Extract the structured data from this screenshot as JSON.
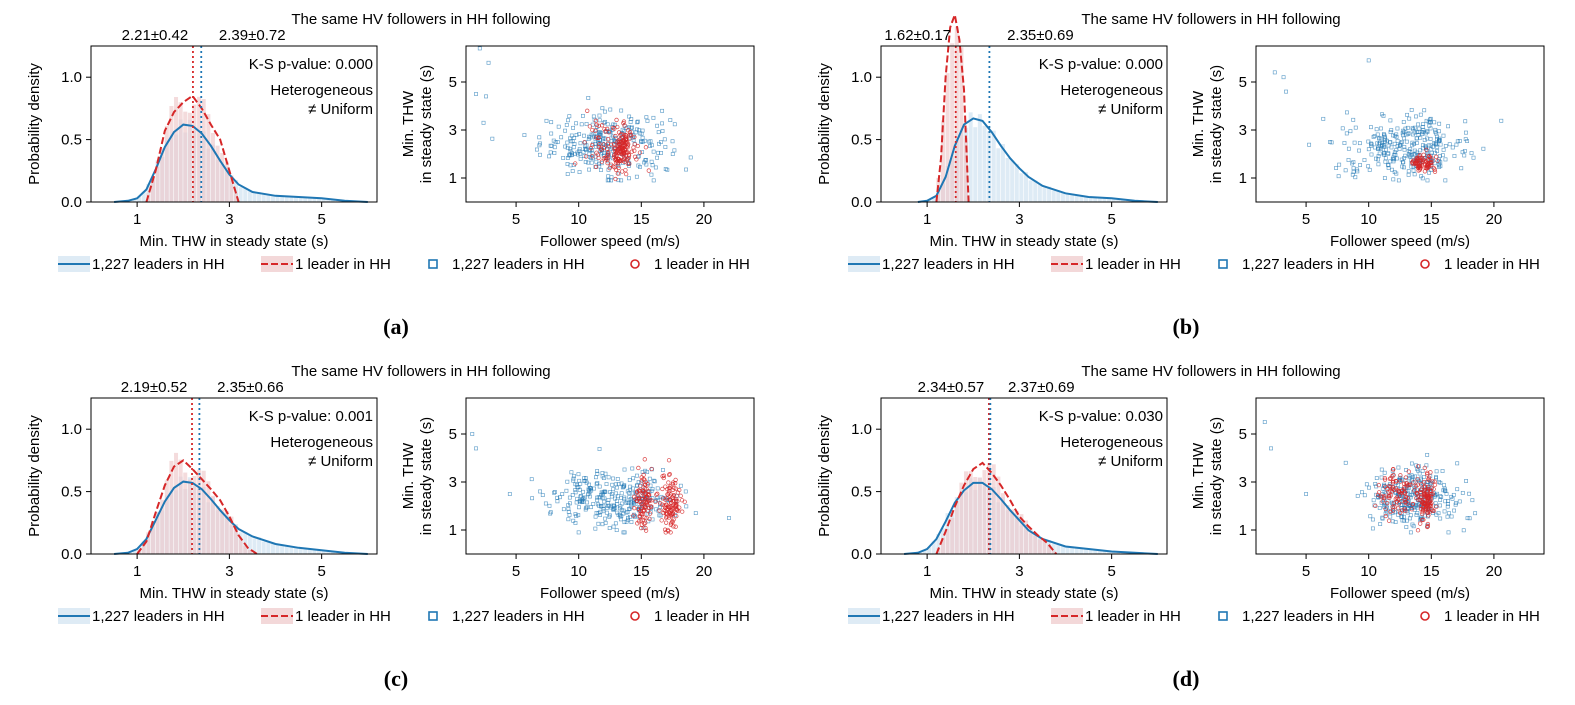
{
  "colors": {
    "blue": "#1f77b4",
    "red": "#d62728",
    "blue_fill": "#d6e6f3",
    "red_fill": "#eec7c9"
  },
  "chart_data": [
    {
      "label": "(a)",
      "title": "The same HV followers in HH following",
      "hist": {
        "type": "area",
        "xlabel": "Min. THW in steady state (s)",
        "ylabel": "Probability density",
        "xlim": [
          0,
          6.2
        ],
        "ylim": [
          0,
          1.25
        ],
        "xticks": [
          1,
          3,
          5
        ],
        "yticks": [
          0.0,
          0.5,
          1.0
        ],
        "xtick_labels": [
          "1",
          "3",
          "5"
        ],
        "ytick_labels": [
          "0.0",
          "0.5",
          "1.0"
        ],
        "mean_red": 2.21,
        "mean_blue": 2.39,
        "stat_red": "2.21±0.42",
        "stat_blue": "2.39±0.72",
        "ks_text": "K-S p-value: 0.000",
        "verdict_line1": "Heterogeneous",
        "verdict_line2": "≠ Uniform",
        "series": [
          {
            "name": "1,227 leaders in HH",
            "style": "solid",
            "x": [
              0.5,
              0.8,
              1.0,
              1.2,
              1.4,
              1.6,
              1.8,
              2.0,
              2.2,
              2.4,
              2.6,
              2.8,
              3.0,
              3.2,
              3.5,
              4.0,
              4.5,
              5.0,
              5.5,
              6.0
            ],
            "y": [
              0.0,
              0.01,
              0.03,
              0.1,
              0.26,
              0.44,
              0.56,
              0.62,
              0.61,
              0.55,
              0.45,
              0.33,
              0.22,
              0.14,
              0.08,
              0.05,
              0.04,
              0.03,
              0.01,
              0.0
            ]
          },
          {
            "name": "1 leader in HH",
            "style": "dashed",
            "x": [
              1.2,
              1.4,
              1.6,
              1.8,
              2.0,
              2.2,
              2.4,
              2.6,
              2.8,
              3.0,
              3.2
            ],
            "y": [
              0.0,
              0.25,
              0.57,
              0.72,
              0.8,
              0.85,
              0.75,
              0.62,
              0.5,
              0.25,
              0.0
            ]
          }
        ]
      },
      "scatter": {
        "type": "scatter",
        "xlabel": "Follower speed (m/s)",
        "ylabel_line1": "Min. THW",
        "ylabel_line2": "in steady state (s)",
        "xlim": [
          1,
          24
        ],
        "ylim": [
          0,
          6.5
        ],
        "xticks": [
          5,
          10,
          15,
          20
        ],
        "yticks": [
          1,
          3,
          5
        ],
        "xtick_labels": [
          "5",
          "10",
          "15",
          "20"
        ],
        "ytick_labels": [
          "1",
          "3",
          "5"
        ],
        "series": [
          {
            "name": "1,227 leaders in HH",
            "marker": "square",
            "cloud": [
              12.2,
              2.4,
              2.6,
              0.65,
              280
            ]
          },
          {
            "name": "1 leader in HH",
            "marker": "circle",
            "cloud": [
              12.6,
              2.3,
              1.0,
              0.55,
              80
            ],
            "band": [
              13.5,
              2.2,
              0.35,
              0.45,
              110
            ]
          }
        ],
        "outliers": [
          [
            2.1,
            6.4
          ],
          [
            2.8,
            5.8
          ],
          [
            1.8,
            4.5
          ],
          [
            2.6,
            4.4
          ],
          [
            2.4,
            3.3
          ]
        ]
      }
    },
    {
      "label": "(b)",
      "title": "The same HV followers in HH following",
      "hist": {
        "type": "area",
        "xlabel": "Min. THW in steady state (s)",
        "ylabel": "Probability density",
        "xlim": [
          0,
          6.2
        ],
        "ylim": [
          0,
          1.25
        ],
        "xticks": [
          1,
          3,
          5
        ],
        "yticks": [
          0.0,
          0.5,
          1.0
        ],
        "xtick_labels": [
          "1",
          "3",
          "5"
        ],
        "ytick_labels": [
          "0.0",
          "0.5",
          "1.0"
        ],
        "mean_red": 1.62,
        "mean_blue": 2.35,
        "stat_red": "1.62±0.17",
        "stat_blue": "2.35±0.69",
        "ks_text": "K-S p-value: 0.000",
        "verdict_line1": "Heterogeneous",
        "verdict_line2": "≠ Uniform",
        "series": [
          {
            "name": "1,227 leaders in HH",
            "style": "solid",
            "x": [
              0.8,
              1.0,
              1.2,
              1.4,
              1.6,
              1.8,
              2.0,
              2.2,
              2.4,
              2.6,
              2.8,
              3.0,
              3.2,
              3.5,
              4.0,
              4.5,
              5.0,
              5.5,
              6.0
            ],
            "y": [
              0.0,
              0.01,
              0.05,
              0.2,
              0.45,
              0.62,
              0.67,
              0.65,
              0.56,
              0.45,
              0.35,
              0.27,
              0.2,
              0.13,
              0.07,
              0.04,
              0.03,
              0.01,
              0.0
            ]
          },
          {
            "name": "1 leader in HH",
            "style": "dashed",
            "x": [
              1.2,
              1.3,
              1.4,
              1.5,
              1.6,
              1.7,
              1.8,
              1.9
            ],
            "y": [
              0.0,
              0.35,
              1.0,
              1.4,
              1.5,
              1.3,
              0.9,
              0.0
            ]
          }
        ]
      },
      "scatter": {
        "type": "scatter",
        "xlabel": "Follower speed (m/s)",
        "ylabel_line1": "Min. THW",
        "ylabel_line2": "in steady state (s)",
        "xlim": [
          1,
          24
        ],
        "ylim": [
          0,
          6.5
        ],
        "xticks": [
          5,
          10,
          15,
          20
        ],
        "yticks": [
          1,
          3,
          5
        ],
        "xtick_labels": [
          "5",
          "10",
          "15",
          "20"
        ],
        "ytick_labels": [
          "1",
          "3",
          "5"
        ],
        "series": [
          {
            "name": "1,227 leaders in HH",
            "marker": "square",
            "cloud": [
              13.0,
              2.3,
              2.5,
              0.65,
              300
            ]
          },
          {
            "name": "1 leader in HH",
            "marker": "circle",
            "cloud": [
              14.3,
              1.62,
              0.5,
              0.17,
              80
            ]
          }
        ],
        "outliers": [
          [
            2.5,
            5.4
          ],
          [
            3.2,
            5.2
          ],
          [
            3.4,
            4.6
          ],
          [
            10.0,
            5.9
          ]
        ]
      }
    },
    {
      "label": "(c)",
      "title": "The same HV followers in HH following",
      "hist": {
        "type": "area",
        "xlabel": "Min. THW in steady state (s)",
        "ylabel": "Probability density",
        "xlim": [
          0,
          6.2
        ],
        "ylim": [
          0,
          1.25
        ],
        "xticks": [
          1,
          3,
          5
        ],
        "yticks": [
          0.0,
          0.5,
          1.0
        ],
        "xtick_labels": [
          "1",
          "3",
          "5"
        ],
        "ytick_labels": [
          "0.0",
          "0.5",
          "1.0"
        ],
        "mean_red": 2.19,
        "mean_blue": 2.35,
        "stat_red": "2.19±0.52",
        "stat_blue": "2.35±0.66",
        "ks_text": "K-S p-value: 0.001",
        "verdict_line1": "Heterogeneous",
        "verdict_line2": "≠ Uniform",
        "series": [
          {
            "name": "1,227 leaders in HH",
            "style": "solid",
            "x": [
              0.5,
              0.8,
              1.0,
              1.2,
              1.4,
              1.6,
              1.8,
              2.0,
              2.2,
              2.4,
              2.6,
              2.8,
              3.0,
              3.2,
              3.5,
              4.0,
              4.5,
              5.0,
              5.5,
              6.0
            ],
            "y": [
              0.0,
              0.01,
              0.04,
              0.12,
              0.27,
              0.42,
              0.53,
              0.58,
              0.57,
              0.52,
              0.44,
              0.35,
              0.27,
              0.2,
              0.14,
              0.08,
              0.05,
              0.03,
              0.01,
              0.0
            ]
          },
          {
            "name": "1 leader in HH",
            "style": "dashed",
            "x": [
              1.0,
              1.2,
              1.4,
              1.6,
              1.8,
              2.0,
              2.2,
              2.4,
              2.6,
              2.8,
              3.0,
              3.2,
              3.4,
              3.6
            ],
            "y": [
              0.0,
              0.1,
              0.33,
              0.55,
              0.7,
              0.75,
              0.68,
              0.6,
              0.52,
              0.43,
              0.3,
              0.15,
              0.05,
              0.0
            ]
          }
        ]
      },
      "scatter": {
        "type": "scatter",
        "xlabel": "Follower speed (m/s)",
        "ylabel_line1": "Min. THW",
        "ylabel_line2": "in steady state (s)",
        "xlim": [
          1,
          24
        ],
        "ylim": [
          0,
          6.5
        ],
        "xticks": [
          5,
          10,
          15,
          20
        ],
        "yticks": [
          1,
          3,
          5
        ],
        "xtick_labels": [
          "5",
          "10",
          "15",
          "20"
        ],
        "ytick_labels": [
          "1",
          "3",
          "5"
        ],
        "series": [
          {
            "name": "1,227 leaders in HH",
            "marker": "square",
            "cloud": [
              13.0,
              2.3,
              2.5,
              0.6,
              300
            ]
          },
          {
            "name": "1 leader in HH",
            "marker": "circle",
            "band": [
              15.2,
              2.2,
              0.35,
              0.55,
              90
            ],
            "band2": [
              17.3,
              2.1,
              0.4,
              0.55,
              110
            ]
          }
        ],
        "outliers": [
          [
            1.5,
            5.0
          ],
          [
            1.8,
            4.4
          ],
          [
            4.5,
            2.5
          ],
          [
            22.0,
            1.5
          ]
        ]
      }
    },
    {
      "label": "(d)",
      "title": "The same HV followers in HH following",
      "hist": {
        "type": "area",
        "xlabel": "Min. THW in steady state (s)",
        "ylabel": "Probability density",
        "xlim": [
          0,
          6.2
        ],
        "ylim": [
          0,
          1.25
        ],
        "xticks": [
          1,
          3,
          5
        ],
        "yticks": [
          0.0,
          0.5,
          1.0
        ],
        "xtick_labels": [
          "1",
          "3",
          "5"
        ],
        "ytick_labels": [
          "0.0",
          "0.5",
          "1.0"
        ],
        "mean_red": 2.34,
        "mean_blue": 2.37,
        "stat_red": "2.34±0.57",
        "stat_blue": "2.37±0.69",
        "ks_text": "K-S p-value: 0.030",
        "verdict_line1": "Heterogeneous",
        "verdict_line2": "≠ Uniform",
        "series": [
          {
            "name": "1,227 leaders in HH",
            "style": "solid",
            "x": [
              0.5,
              0.8,
              1.0,
              1.2,
              1.4,
              1.6,
              1.8,
              2.0,
              2.2,
              2.4,
              2.6,
              2.8,
              3.0,
              3.2,
              3.5,
              4.0,
              4.5,
              5.0,
              5.5,
              6.0
            ],
            "y": [
              0.0,
              0.01,
              0.04,
              0.12,
              0.26,
              0.41,
              0.51,
              0.57,
              0.57,
              0.52,
              0.44,
              0.35,
              0.27,
              0.19,
              0.12,
              0.06,
              0.04,
              0.02,
              0.01,
              0.0
            ]
          },
          {
            "name": "1 leader in HH",
            "style": "dashed",
            "x": [
              1.2,
              1.4,
              1.6,
              1.8,
              2.0,
              2.2,
              2.4,
              2.6,
              2.8,
              3.0,
              3.2,
              3.4,
              3.6,
              3.8
            ],
            "y": [
              0.0,
              0.18,
              0.38,
              0.55,
              0.68,
              0.73,
              0.65,
              0.55,
              0.43,
              0.3,
              0.22,
              0.15,
              0.09,
              0.0
            ]
          }
        ]
      },
      "scatter": {
        "type": "scatter",
        "xlabel": "Follower speed (m/s)",
        "ylabel_line1": "Min. THW",
        "ylabel_line2": "in steady state (s)",
        "xlim": [
          1,
          24
        ],
        "ylim": [
          0,
          6.5
        ],
        "xticks": [
          5,
          10,
          15,
          20
        ],
        "yticks": [
          1,
          3,
          5
        ],
        "xtick_labels": [
          "5",
          "10",
          "15",
          "20"
        ],
        "ytick_labels": [
          "1",
          "3",
          "5"
        ],
        "series": [
          {
            "name": "1,227 leaders in HH",
            "marker": "square",
            "cloud": [
              13.6,
              2.4,
              1.9,
              0.65,
              300
            ]
          },
          {
            "name": "1 leader in HH",
            "marker": "circle",
            "cloud": [
              12.3,
              2.5,
              0.8,
              0.5,
              100
            ],
            "band": [
              14.6,
              2.3,
              0.35,
              0.55,
              110
            ]
          }
        ],
        "outliers": [
          [
            1.7,
            5.5
          ],
          [
            2.2,
            4.4
          ],
          [
            5.0,
            2.5
          ],
          [
            18.5,
            1.7
          ]
        ]
      }
    }
  ]
}
